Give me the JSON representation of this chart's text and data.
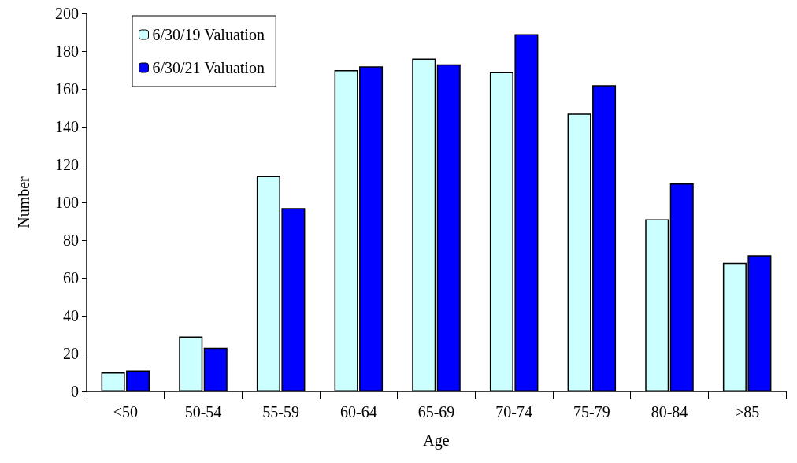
{
  "chart_data": {
    "type": "bar",
    "xlabel": "Age",
    "ylabel": "Number",
    "categories": [
      "<50",
      "50-54",
      "55-59",
      "60-64",
      "65-69",
      "70-74",
      "75-79",
      "80-84",
      "≥85"
    ],
    "series": [
      {
        "name": "6/30/19 Valuation",
        "color": "#ccffff",
        "values": [
          10,
          29,
          114,
          170,
          176,
          169,
          147,
          91,
          68
        ]
      },
      {
        "name": "6/30/21 Valuation",
        "color": "#0000ff",
        "values": [
          11,
          23,
          97,
          172,
          173,
          189,
          162,
          110,
          72
        ]
      }
    ],
    "ylim": [
      0,
      200
    ],
    "yticks": [
      0,
      20,
      40,
      60,
      80,
      100,
      120,
      140,
      160,
      180,
      200
    ],
    "grid": false,
    "legend": "top left"
  }
}
